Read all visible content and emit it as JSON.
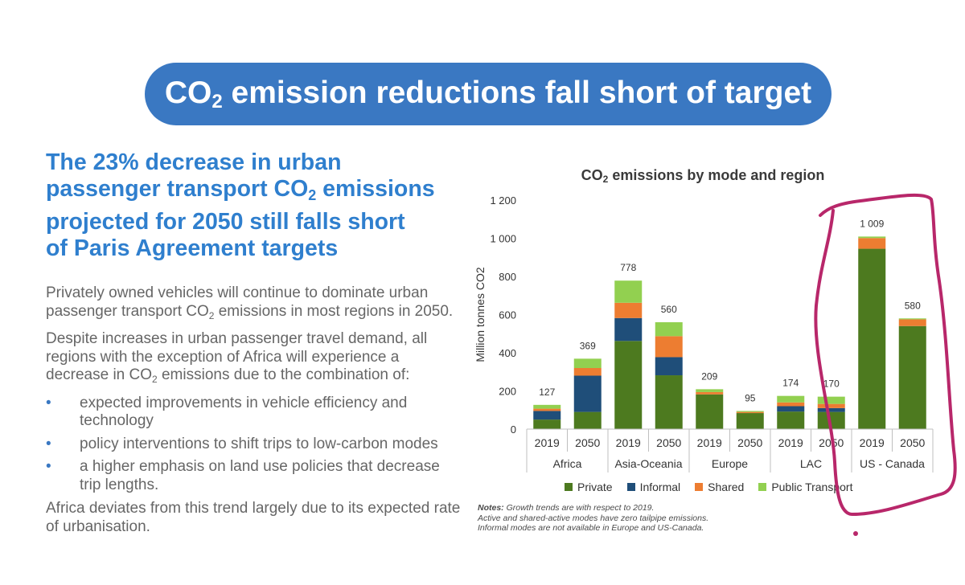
{
  "slide": {
    "title_pre": "CO",
    "title_sub": "2",
    "title_post": " emission reductions fall short of target",
    "headline": {
      "line1": "The 23% decrease in urban",
      "line2_pre": "passenger transport CO",
      "line2_sub": "2",
      "line2_post": " emissions",
      "line3": "projected for 2050 still falls short",
      "line4": "of Paris Agreement targets"
    },
    "para1_pre": "Privately owned vehicles will continue to dominate urban passenger transport CO",
    "para1_sub": "2",
    "para1_post": " emissions in most regions in 2050.",
    "para2_pre": "Despite increases in urban passenger travel demand, all regions with the exception of Africa will experience a decrease in CO",
    "para2_sub": "2",
    "para2_post": " emissions due to the combination of:",
    "bullet_glyph": "•",
    "bullets": [
      "expected improvements in vehicle efficiency and technology",
      "policy interventions to shift trips to low-carbon modes",
      "a higher emphasis on land use policies that decrease trip lengths."
    ],
    "para3": "Africa deviates from this trend largely due to its expected rate of urbanisation.",
    "notes": {
      "label": "Notes:",
      "line1": " Growth trends are with respect to 2019.",
      "line2": "Active and shared-active modes have zero tailpipe emissions.",
      "line3": "Informal modes are not available in Europe and US-Canada."
    },
    "annotation_color": "#b8276a"
  },
  "chart_data": {
    "type": "bar",
    "stacked": true,
    "title_pre": "CO",
    "title_sub": "2",
    "title_post": " emissions by mode and region",
    "ylabel": "Million tonnes CO2",
    "ylim": [
      0,
      1200
    ],
    "yticks": [
      0,
      200,
      400,
      600,
      800,
      1000,
      1200
    ],
    "ytick_labels": [
      "0",
      "200",
      "400",
      "600",
      "800",
      "1 000",
      "1 200"
    ],
    "grid": false,
    "legend_position": "bottom",
    "categories": [
      "2019",
      "2050",
      "2019",
      "2050",
      "2019",
      "2050",
      "2019",
      "2050",
      "2019",
      "2050"
    ],
    "groups": [
      {
        "name": "Africa",
        "span": 2
      },
      {
        "name": "Asia-Oceania",
        "span": 2
      },
      {
        "name": "Europe",
        "span": 2
      },
      {
        "name": "LAC",
        "span": 2
      },
      {
        "name": "US - Canada",
        "span": 2
      }
    ],
    "series": [
      {
        "name": "Private",
        "color": "#4d7a1f",
        "values": [
          50,
          90,
          462,
          282,
          182,
          84,
          92,
          90,
          945,
          540
        ]
      },
      {
        "name": "Informal",
        "color": "#1f4e79",
        "values": [
          45,
          190,
          120,
          95,
          0,
          0,
          28,
          20,
          0,
          0
        ]
      },
      {
        "name": "Shared",
        "color": "#ed7d31",
        "values": [
          12,
          40,
          80,
          110,
          12,
          6,
          20,
          22,
          56,
          35
        ]
      },
      {
        "name": "Public Transport",
        "color": "#92d050",
        "values": [
          20,
          49,
          116,
          73,
          15,
          5,
          34,
          38,
          8,
          5
        ]
      }
    ],
    "totals": [
      "127",
      "369",
      "778",
      "560",
      "209",
      "95",
      "174",
      "170",
      "1 009",
      "580"
    ]
  }
}
